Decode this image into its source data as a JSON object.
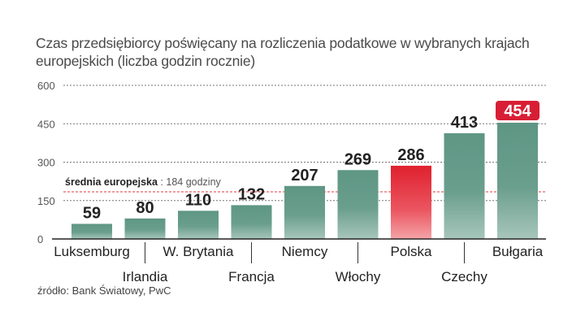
{
  "chart_data": {
    "type": "bar",
    "title": "Czas przedsiębiorcy poświęcany na rozliczenia podatkowe w wybranych krajach europejskich (liczba godzin rocznie)",
    "categories": [
      "Luksemburg",
      "Irlandia",
      "W. Brytania",
      "Francja",
      "Niemcy",
      "Włochy",
      "Polska",
      "Czechy",
      "Bułgaria"
    ],
    "values": [
      59,
      80,
      110,
      132,
      207,
      269,
      286,
      413,
      454
    ],
    "highlight": {
      "Polska": "red",
      "Bułgaria": "label-badge-red"
    },
    "ylim": [
      0,
      600
    ],
    "yticks": [
      0,
      150,
      300,
      450,
      600
    ],
    "grid": true,
    "reference_line": {
      "value": 184,
      "label_bold": "średnia europejska",
      "label_rest": " : 184 godziny"
    },
    "colors": {
      "bar": "#5e9684",
      "bar_top_light": "#78a998",
      "bar_highlight": "#e0202e",
      "badge": "#d81e35",
      "reference": "#e03a3a",
      "grid": "#777777"
    },
    "source": "źródło: Bank Światowy, PwC"
  }
}
